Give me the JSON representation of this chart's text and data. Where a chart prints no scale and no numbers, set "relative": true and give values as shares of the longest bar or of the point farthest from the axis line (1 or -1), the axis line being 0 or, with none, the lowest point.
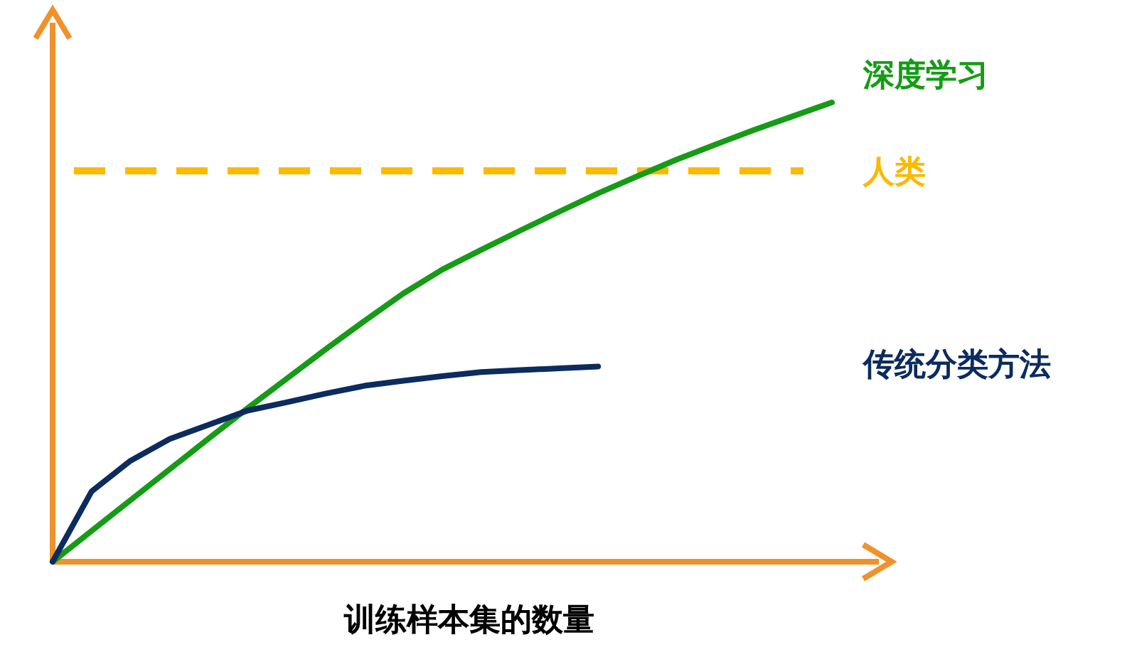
{
  "chart_data": {
    "type": "line",
    "relative": true,
    "xlabel": "训练样本集的数量",
    "categories": [
      null,
      null,
      null,
      null,
      null,
      null,
      null,
      null,
      null,
      null,
      null,
      null,
      null,
      null,
      null,
      null,
      null,
      null,
      null,
      null,
      null
    ],
    "series": [
      {
        "name": "深度学习",
        "color": "#169b16",
        "values": [
          0,
          0.067,
          0.134,
          0.201,
          0.268,
          0.334,
          0.398,
          0.462,
          0.524,
          0.584,
          0.636,
          0.679,
          0.721,
          0.762,
          0.802,
          0.839,
          0.875,
          0.908,
          0.94,
          0.97,
          1
        ]
      },
      {
        "name": "传统分类方法",
        "color": "#0c2b5e",
        "values": [
          0,
          0.153,
          0.22,
          0.267,
          0.298,
          0.329,
          0.347,
          0.366,
          0.383,
          0.394,
          0.404,
          0.413,
          0.417,
          0.421,
          0.425,
          null,
          null,
          null,
          null,
          null,
          null
        ]
      }
    ],
    "ref_lines": [
      {
        "axis": "y",
        "value": 0.851,
        "label": "人类",
        "color": "#fbb900",
        "line_style": "dashed"
      }
    ],
    "legend": false,
    "grid": false,
    "marker": "none",
    "line_style": "solid"
  }
}
